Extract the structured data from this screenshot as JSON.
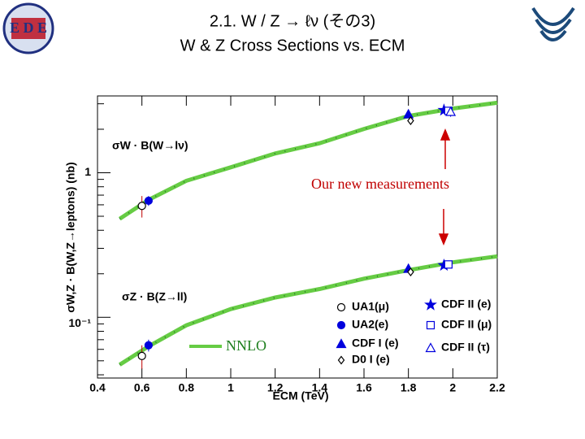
{
  "header": {
    "title": "2.1. W / Z → ℓν (その3)",
    "subtitle": "W & Z Cross Sections vs. ECM"
  },
  "chart_data": {
    "type": "scatter",
    "xlabel": "ECM (TeV)",
    "ylabel": "σW,Z · B(W,Z→leptons) (nb)",
    "xlim": [
      0.4,
      2.2
    ],
    "xticks": [
      0.4,
      0.6,
      0.8,
      1,
      1.2,
      1.4,
      1.6,
      1.8,
      2,
      2.2
    ],
    "ylim": [
      0.038,
      3.4
    ],
    "log_y": true,
    "yticks": [
      {
        "value": 0.1,
        "label": "10⁻¹"
      },
      1
    ],
    "yminorticks": [
      0.04,
      0.05,
      0.06,
      0.07,
      0.08,
      0.09,
      0.2,
      0.3,
      0.4,
      0.5,
      0.6,
      0.7,
      0.8,
      0.9,
      2,
      3
    ],
    "curves": [
      {
        "name": "W",
        "label": "σW · B(W→lν)",
        "color": "#66cc44",
        "x": [
          0.5,
          0.63,
          0.8,
          1.0,
          1.2,
          1.4,
          1.6,
          1.8,
          2.0,
          2.2
        ],
        "values": [
          0.48,
          0.65,
          0.88,
          1.09,
          1.36,
          1.6,
          2.01,
          2.47,
          2.78,
          3.05
        ]
      },
      {
        "name": "Z",
        "label": "σZ · B(Z→ll)",
        "color": "#66cc44",
        "x": [
          0.5,
          0.63,
          0.8,
          1.0,
          1.2,
          1.4,
          1.6,
          1.8,
          2.0,
          2.2
        ],
        "values": [
          0.047,
          0.063,
          0.088,
          0.114,
          0.137,
          0.157,
          0.185,
          0.212,
          0.24,
          0.264
        ]
      }
    ],
    "curve_legend": "NNLO",
    "series": [
      {
        "name": "UA1(μ)",
        "marker": "circle-open",
        "color": "#000000",
        "x": [
          0.6,
          0.6
        ],
        "values": [
          0.59,
          0.054
        ],
        "errors": [
          0.1,
          0.01
        ]
      },
      {
        "name": "UA2(e)",
        "marker": "circle",
        "color": "#0000dd",
        "x": [
          0.63,
          0.63
        ],
        "values": [
          0.64,
          0.064
        ],
        "errors": [
          0.05,
          0.006
        ]
      },
      {
        "name": "CDF I (e)",
        "marker": "triangle",
        "color": "#0000dd",
        "x": [
          1.8,
          1.8
        ],
        "values": [
          2.54,
          0.217
        ],
        "errors": [
          0.12,
          0.012
        ]
      },
      {
        "name": "D0 I (e)",
        "marker": "diamond-open",
        "color": "#000000",
        "x": [
          1.81,
          1.81
        ],
        "values": [
          2.29,
          0.206
        ],
        "errors": [
          0.1,
          0.012
        ]
      },
      {
        "name": "CDF II (e)",
        "marker": "star",
        "color": "#0000dd",
        "x": [
          1.96,
          1.96
        ],
        "values": [
          2.71,
          0.229
        ],
        "errors": [
          0.15,
          0.012
        ]
      },
      {
        "name": "CDF II (μ)",
        "marker": "square-open",
        "color": "#0000dd",
        "x": [
          1.98,
          1.98
        ],
        "values": [
          2.68,
          0.232
        ],
        "errors": [
          0.15,
          0.012
        ]
      },
      {
        "name": "CDF II (τ)",
        "marker": "triangle-open",
        "color": "#0000dd",
        "x": [
          1.99
        ],
        "values": [
          2.64
        ],
        "errors": [
          0.2
        ]
      }
    ],
    "annotation": "Our new measurements"
  }
}
